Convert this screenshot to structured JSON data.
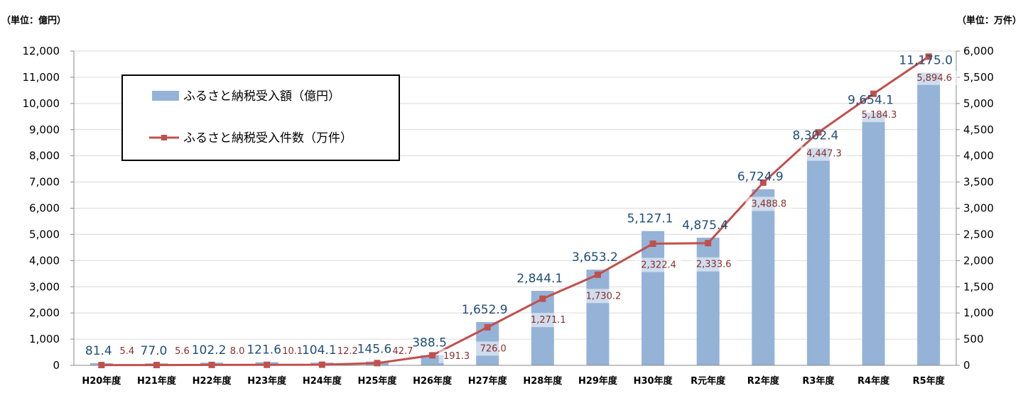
{
  "chart_data": {
    "type": "bar",
    "left_unit_label": "（単位：億円）",
    "right_unit_label": "（単位：万件）",
    "categories": [
      "H20年度",
      "H21年度",
      "H22年度",
      "H23年度",
      "H24年度",
      "H25年度",
      "H26年度",
      "H27年度",
      "H28年度",
      "H29年度",
      "H30年度",
      "R元年度",
      "R2年度",
      "R3年度",
      "R4年度",
      "R5年度"
    ],
    "series": [
      {
        "name": "ふるさと納税受入額（億円）",
        "type": "bar",
        "axis": "left",
        "color": "#95b3d7",
        "values": [
          81.4,
          77.0,
          102.2,
          121.6,
          104.1,
          145.6,
          388.5,
          1652.9,
          2844.1,
          3653.2,
          5127.1,
          4875.4,
          6724.9,
          8302.4,
          9654.1,
          11175.0
        ],
        "labels": [
          "81.4",
          "77.0",
          "102.2",
          "121.6",
          "104.1",
          "145.6",
          "388.5",
          "1,652.9",
          "2,844.1",
          "3,653.2",
          "5,127.1",
          "4,875.4",
          "6,724.9",
          "8,302.4",
          "9,654.1",
          "11,175.0"
        ]
      },
      {
        "name": "ふるさと納税受入件数（万件）",
        "type": "line",
        "axis": "right",
        "color": "#c0504d",
        "values": [
          5.4,
          5.6,
          8.0,
          10.1,
          12.2,
          42.7,
          191.3,
          726.0,
          1271.1,
          1730.2,
          2322.4,
          2333.6,
          3488.8,
          4447.3,
          5184.3,
          5894.6
        ],
        "labels": [
          "5.4",
          "5.6",
          "8.0",
          "10.1",
          "12.2",
          "42.7",
          "191.3",
          "726.0",
          "1,271.1",
          "1,730.2",
          "2,322.4",
          "2,333.6",
          "3,488.8",
          "4,447.3",
          "5,184.3",
          "5,894.6"
        ]
      }
    ],
    "left_axis": {
      "ylim": [
        0,
        12000
      ],
      "ticks": [
        "0",
        "1,000",
        "2,000",
        "3,000",
        "4,000",
        "5,000",
        "6,000",
        "7,000",
        "8,000",
        "9,000",
        "10,000",
        "11,000",
        "12,000"
      ]
    },
    "right_axis": {
      "ylim": [
        0,
        6000
      ],
      "ticks": [
        "0",
        "500",
        "1,000",
        "1,500",
        "2,000",
        "2,500",
        "3,000",
        "3,500",
        "4,000",
        "4,500",
        "5,000",
        "5,500",
        "6,000"
      ]
    },
    "grid": true,
    "legend_position": "top-left"
  }
}
